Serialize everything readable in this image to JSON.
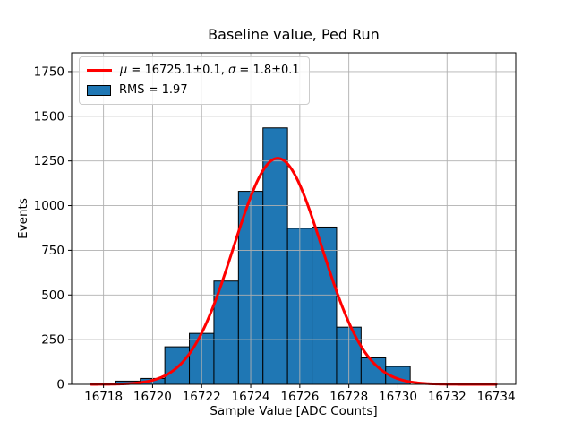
{
  "figure": {
    "background": "#ffffff"
  },
  "chart_data": {
    "type": "bar",
    "variant": "histogram",
    "title": "Baseline value, Ped Run",
    "xlabel": "Sample Value [ADC Counts]",
    "ylabel": "Events",
    "bin_width": 1,
    "bin_centers": [
      16718,
      16719,
      16720,
      16721,
      16722,
      16723,
      16724,
      16725,
      16726,
      16727,
      16728,
      16729,
      16730,
      16731,
      16732,
      16733
    ],
    "values": [
      3,
      18,
      33,
      210,
      285,
      578,
      1080,
      1435,
      873,
      880,
      320,
      148,
      100,
      0,
      0,
      0
    ],
    "xlim": [
      16716.7,
      16734.8
    ],
    "ylim": [
      0,
      1855
    ],
    "xticks": [
      16718,
      16720,
      16722,
      16724,
      16726,
      16728,
      16730,
      16732,
      16734
    ],
    "yticks": [
      0,
      250,
      500,
      750,
      1000,
      1250,
      1500,
      1750
    ],
    "grid": true,
    "legend_position": "upper left",
    "legend_entries": [
      "μ = 16725.1±0.1, σ = 1.8±0.1",
      "RMS = 1.97"
    ],
    "fit": {
      "model": "gaussian",
      "mu": 16725.1,
      "mu_err": 0.1,
      "sigma": 1.8,
      "sigma_err": 0.1,
      "amplitude": 1265,
      "x_start": 16717.5,
      "x_end": 16734.0
    },
    "rms": 1.97
  },
  "legend_ui": {
    "mu_symbol": "μ",
    "mu_rest": " = 16725.1±0.1, ",
    "sigma_symbol": "σ",
    "sigma_rest": " = 1.8±0.1",
    "rms_label": "RMS = 1.97"
  },
  "colors": {
    "bar_fill": "#1f77b4",
    "bar_edge": "#000000",
    "fit_line": "#ff0000",
    "grid": "#b0b0b0",
    "axis": "#000000",
    "legend_border": "#cccccc"
  }
}
